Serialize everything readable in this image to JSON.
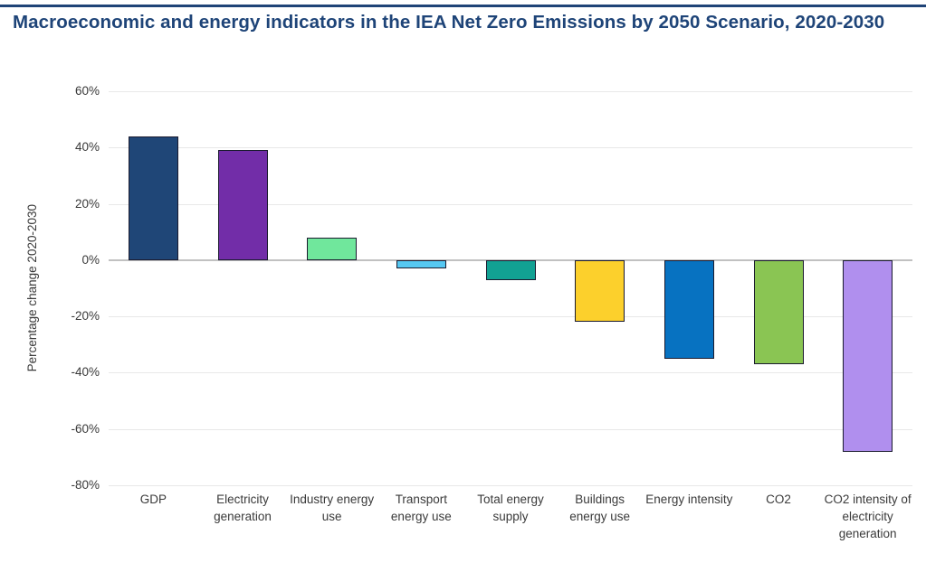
{
  "page": {
    "accent_color": "#1F4477",
    "background": "#FFFFFF"
  },
  "chart_data": {
    "type": "bar",
    "title": "Macroeconomic and energy indicators in the IEA Net Zero Emissions by 2050 Scenario, 2020-2030",
    "ylabel": "Percentage change 2020-2030",
    "xlabel": "",
    "ylim": [
      -80,
      60
    ],
    "ytick_step": 20,
    "ytick_suffix": "%",
    "grid": true,
    "legend": false,
    "categories": [
      "GDP",
      "Electricity generation",
      "Industry energy use",
      "Transport energy use",
      "Total energy supply",
      "Buildings energy use",
      "Energy intensity",
      "CO2",
      "CO2 intensity of electricity generation"
    ],
    "values": [
      44,
      39,
      8,
      -3,
      -7,
      -22,
      -35,
      -37,
      -68
    ],
    "unit": "%",
    "bar_colors": [
      "#1F4677",
      "#722DA8",
      "#70E79C",
      "#56C8F2",
      "#12A193",
      "#FCD02C",
      "#0772C1",
      "#8AC553",
      "#B08FEE"
    ],
    "bar_border_color": "#1A1A2E",
    "gridline_color": "#E8E8E8",
    "zero_line_color": "#C1C1C1",
    "axis_text_color": "#3A3A3A",
    "title_color": "#1E4478"
  }
}
